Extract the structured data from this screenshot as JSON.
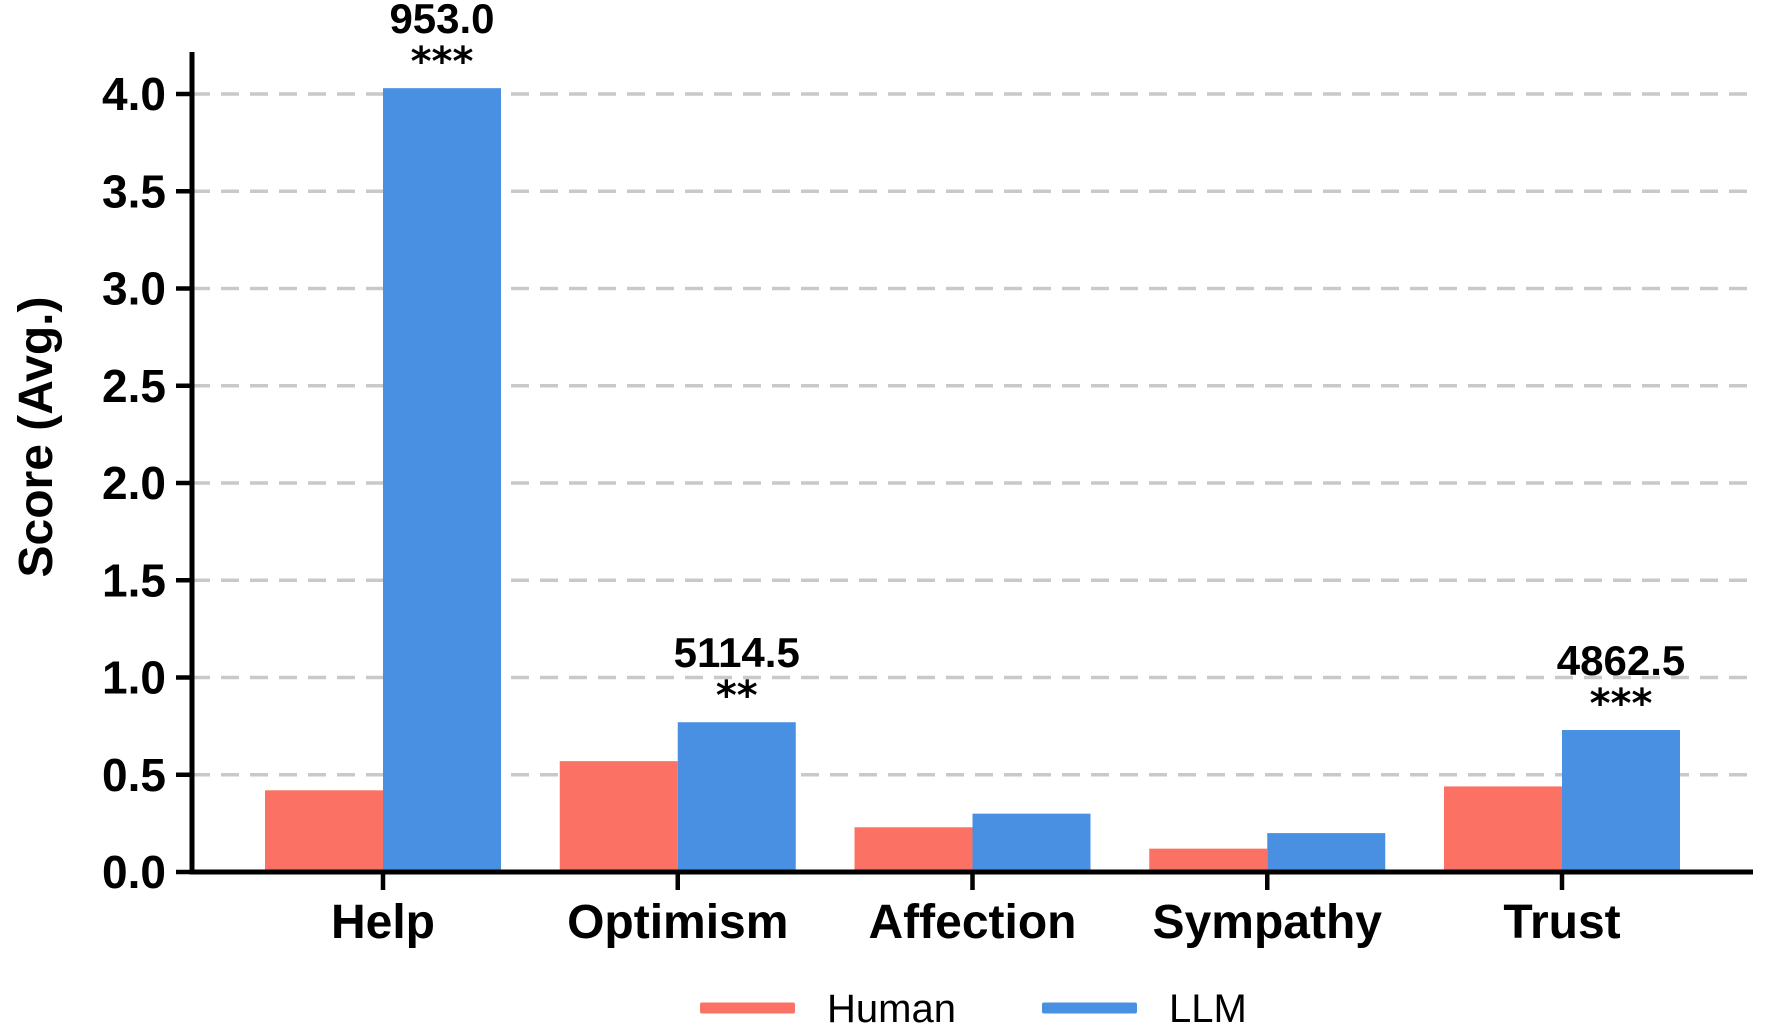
{
  "figure": {
    "background_color": "#ffffff",
    "text_color": "#000000",
    "gridline_color": "#c9c9c9"
  },
  "chart_data": {
    "type": "bar",
    "title": "",
    "xlabel": "",
    "ylabel": "Score (Avg.)",
    "categories": [
      "Help",
      "Optimism",
      "Affection",
      "Sympathy",
      "Trust"
    ],
    "series": [
      {
        "name": "Human",
        "color": "#FB7164",
        "values": [
          0.42,
          0.57,
          0.23,
          0.12,
          0.44
        ]
      },
      {
        "name": "LLM",
        "color": "#4A90E2",
        "values": [
          4.03,
          0.77,
          0.3,
          0.2,
          0.73
        ]
      }
    ],
    "annotations": [
      {
        "category_index": 0,
        "series": "LLM",
        "label": "953.0",
        "stars": "***"
      },
      {
        "category_index": 1,
        "series": "LLM",
        "label": "5114.5",
        "stars": "**"
      },
      {
        "category_index": 4,
        "series": "LLM",
        "label": "4862.5",
        "stars": "***"
      }
    ],
    "yticks": [
      "0.0",
      "0.5",
      "1.0",
      "1.5",
      "2.0",
      "2.5",
      "3.0",
      "3.5",
      "4.0"
    ],
    "ylim": [
      0,
      4.22
    ],
    "grid": "horizontal-dashed",
    "legend": {
      "position": "bottom-center",
      "items": [
        "Human",
        "LLM"
      ]
    }
  }
}
